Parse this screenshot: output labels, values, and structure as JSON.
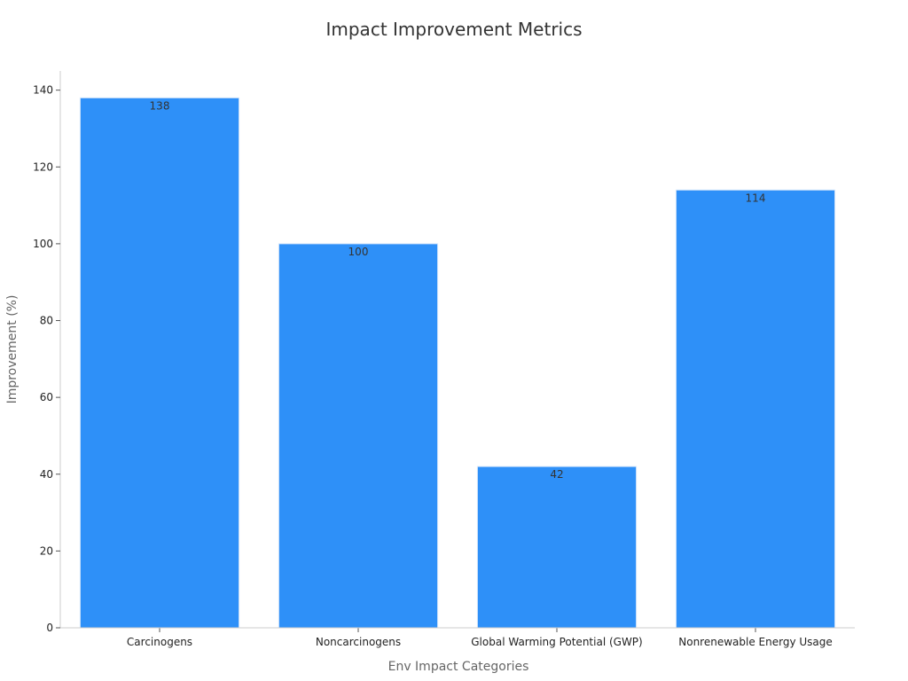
{
  "chart_data": {
    "type": "bar",
    "title": "Impact Improvement Metrics",
    "xlabel": "Env Impact Categories",
    "ylabel": "Improvement (%)",
    "categories": [
      "Carcinogens",
      "Noncarcinogens",
      "Global Warming Potential (GWP)",
      "Nonrenewable Energy Usage"
    ],
    "values": [
      138,
      100,
      42,
      114
    ],
    "ylim": [
      0,
      145
    ],
    "yticks": [
      0,
      20,
      40,
      60,
      80,
      100,
      120,
      140
    ],
    "grid": false,
    "bar_color": "#2e90f8"
  }
}
